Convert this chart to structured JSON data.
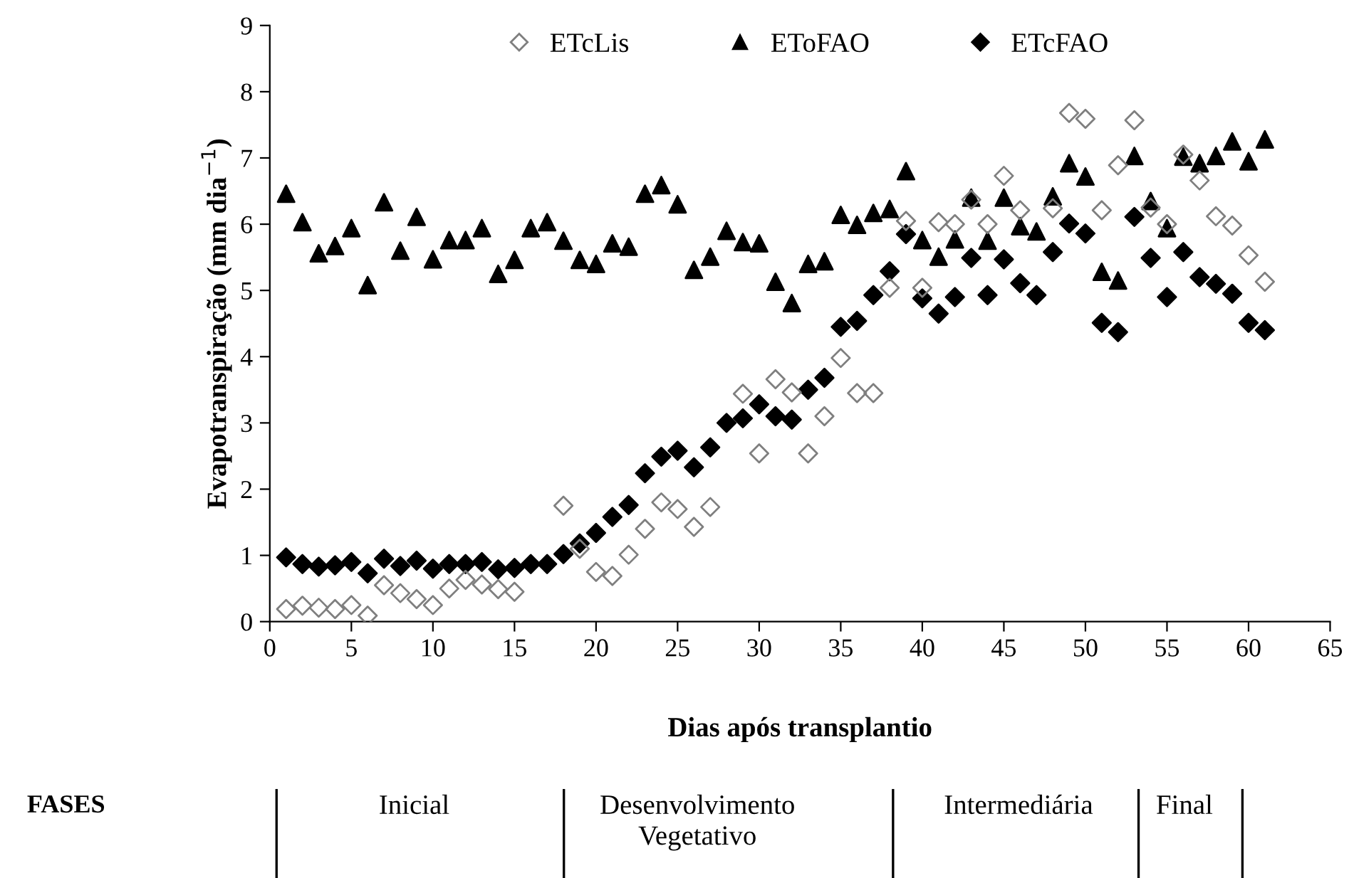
{
  "chart_data": {
    "type": "scatter",
    "xlabel": "Dias após transplantio",
    "ylabel": "Evapotranspiração (mm dia$^{−1}$)",
    "xlim": [
      0,
      65
    ],
    "xticks": [
      0,
      5,
      10,
      15,
      20,
      25,
      30,
      35,
      40,
      45,
      50,
      55,
      60,
      65
    ],
    "ylim": [
      0,
      9
    ],
    "yticks": [
      0,
      1,
      2,
      3,
      4,
      5,
      6,
      7,
      8,
      9
    ],
    "grid": false,
    "legend": "top",
    "x": [
      1,
      2,
      3,
      4,
      5,
      6,
      7,
      8,
      9,
      10,
      11,
      12,
      13,
      14,
      15,
      16,
      17,
      18,
      19,
      20,
      21,
      22,
      23,
      24,
      25,
      26,
      27,
      28,
      29,
      30,
      31,
      32,
      33,
      34,
      35,
      36,
      37,
      38,
      39,
      40,
      41,
      42,
      43,
      44,
      45,
      46,
      47,
      48,
      49,
      50,
      51,
      52,
      53,
      54,
      55,
      56,
      57,
      58,
      59,
      60,
      61
    ],
    "series": [
      {
        "name": "ETcLis",
        "color": "#7f7f7f",
        "marker": "diamond",
        "values": [
          0.19,
          0.24,
          0.21,
          0.19,
          0.25,
          0.09,
          0.55,
          0.43,
          0.34,
          0.25,
          0.5,
          0.63,
          0.56,
          0.49,
          0.45,
          null,
          null,
          1.75,
          1.1,
          0.75,
          0.69,
          1.01,
          1.4,
          1.8,
          1.7,
          1.43,
          1.73,
          null,
          3.44,
          2.54,
          3.66,
          3.46,
          2.54,
          3.1,
          3.98,
          3.45,
          3.45,
          5.04,
          6.05,
          5.04,
          6.03,
          6.0,
          6.37,
          6.0,
          6.73,
          6.21,
          null,
          6.24,
          7.68,
          7.59,
          6.21,
          6.89,
          7.57,
          6.25,
          6.0,
          7.05,
          6.66,
          6.12,
          5.98,
          5.53,
          5.13
        ]
      },
      {
        "name": "EToFAO",
        "color": "#000000",
        "marker": "triangle",
        "values": [
          6.46,
          6.03,
          5.56,
          5.67,
          5.94,
          5.08,
          6.33,
          5.6,
          6.11,
          5.47,
          5.76,
          5.76,
          5.94,
          5.25,
          5.46,
          5.94,
          6.03,
          5.75,
          5.46,
          5.4,
          5.71,
          5.66,
          6.46,
          6.59,
          6.3,
          5.31,
          5.51,
          5.9,
          5.73,
          5.71,
          5.13,
          4.81,
          5.4,
          5.44,
          6.14,
          5.99,
          6.17,
          6.23,
          6.8,
          5.76,
          5.51,
          5.77,
          6.4,
          5.75,
          6.4,
          5.97,
          5.89,
          6.42,
          6.92,
          6.72,
          5.28,
          5.15,
          7.03,
          6.35,
          5.94,
          7.02,
          6.92,
          7.03,
          7.25,
          6.95,
          7.28
        ]
      },
      {
        "name": "ETcFAO",
        "color": "#000000",
        "marker": "diamond",
        "values": [
          0.97,
          0.87,
          0.83,
          0.85,
          0.9,
          0.73,
          0.95,
          0.84,
          0.92,
          0.8,
          0.87,
          0.87,
          0.9,
          0.79,
          0.81,
          0.87,
          0.87,
          1.02,
          1.18,
          1.34,
          1.58,
          1.76,
          2.24,
          2.49,
          2.58,
          2.33,
          2.63,
          3.0,
          3.07,
          3.28,
          3.1,
          3.05,
          3.5,
          3.68,
          4.45,
          4.54,
          4.93,
          5.29,
          5.85,
          4.88,
          4.65,
          4.9,
          5.49,
          4.93,
          5.47,
          5.11,
          4.93,
          5.58,
          6.01,
          5.86,
          4.51,
          4.37,
          6.11,
          5.49,
          4.9,
          5.58,
          5.2,
          5.1,
          4.95,
          4.51,
          4.4
        ]
      }
    ],
    "annotations": [
      "FASES",
      "Inicial",
      "Desenvolvimento\nVegetativo",
      "Intermediária",
      "Final"
    ]
  }
}
